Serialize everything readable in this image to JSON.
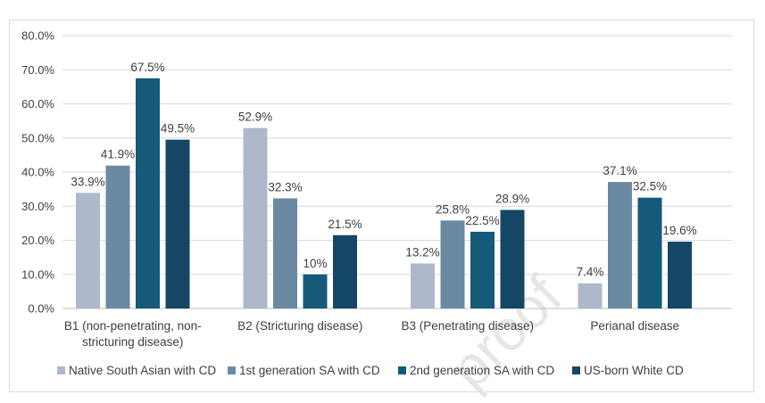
{
  "chart_data": {
    "type": "bar",
    "categories": [
      [
        "B1 (non-penetrating, non-",
        "stricturing disease)"
      ],
      [
        "B2 (Stricturing disease)"
      ],
      [
        "B3 (Penetrating disease)"
      ],
      [
        "Perianal disease"
      ]
    ],
    "series": [
      {
        "name": "Native South Asian with CD",
        "color": "#adb9ca",
        "values": [
          33.9,
          52.9,
          13.2,
          7.4
        ],
        "labels": [
          "33.9%",
          "52.9%",
          "13.2%",
          "7.4%"
        ]
      },
      {
        "name": "1st generation SA with CD",
        "color": "#6a8aa3",
        "values": [
          41.9,
          32.3,
          25.8,
          37.1
        ],
        "labels": [
          "41.9%",
          "32.3%",
          "25.8%",
          "37.1%"
        ]
      },
      {
        "name": "2nd generation SA with CD",
        "color": "#165a7a",
        "values": [
          67.5,
          10.0,
          22.5,
          32.5
        ],
        "labels": [
          "67.5%",
          "10%",
          "22.5%",
          "32.5%"
        ]
      },
      {
        "name": "US-born White CD",
        "color": "#144766",
        "values": [
          49.5,
          21.5,
          28.9,
          19.6
        ],
        "labels": [
          "49.5%",
          "21.5%",
          "28.9%",
          "19.6%"
        ]
      }
    ],
    "yticks": [
      "0.0%",
      "10.0%",
      "20.0%",
      "30.0%",
      "40.0%",
      "50.0%",
      "60.0%",
      "70.0%",
      "80.0%"
    ],
    "ylim": [
      0,
      80
    ],
    "grid": true,
    "legend_position": "bottom"
  },
  "watermark": "proof"
}
